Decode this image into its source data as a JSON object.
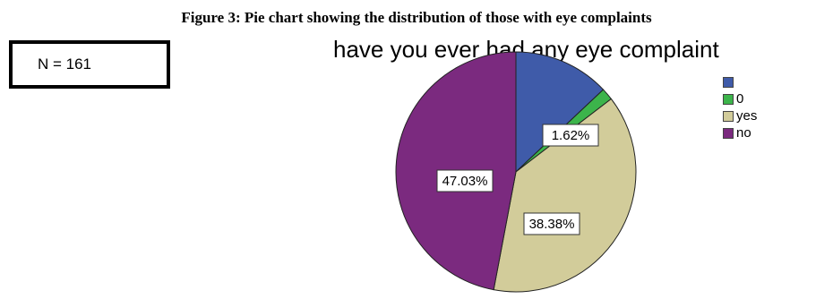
{
  "caption": "Figure 3: Pie chart showing the distribution of those with eye complaints",
  "sample_size_label": "N = 161",
  "chart_data": {
    "type": "pie",
    "title": "have you ever had any eye complaint",
    "slices": [
      {
        "label": "",
        "value": 12.97,
        "color": "#3f5ba9",
        "data_label": ""
      },
      {
        "label": "0",
        "value": 1.62,
        "color": "#3cb44b",
        "data_label": "1.62%"
      },
      {
        "label": "yes",
        "value": 38.38,
        "color": "#d2cc9a",
        "data_label": "38.38%"
      },
      {
        "label": "no",
        "value": 47.03,
        "color": "#7b2a7f",
        "data_label": "47.03%"
      }
    ],
    "legend_position": "right"
  }
}
